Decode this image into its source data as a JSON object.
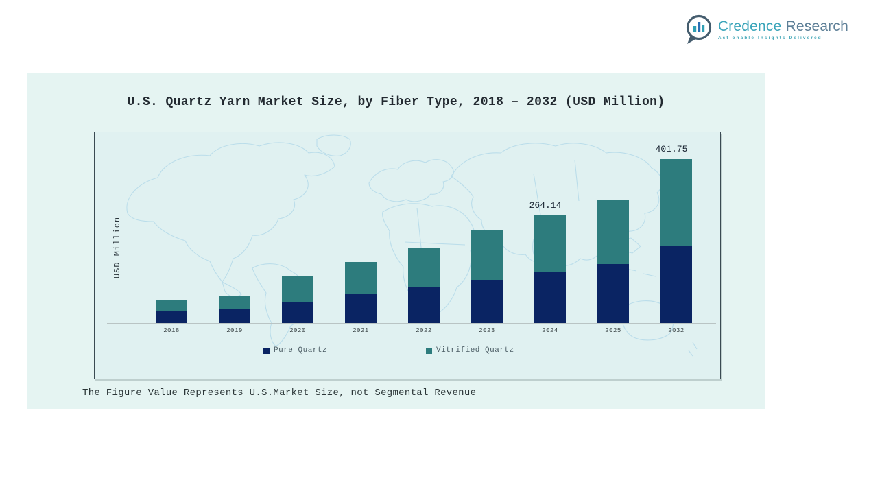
{
  "logo": {
    "brand_primary": "Credence",
    "brand_secondary": "Research",
    "tagline": "Actionable Insights Delivered",
    "colors": {
      "primary_text": "#3ba5ba",
      "secondary_text": "#5d7f97",
      "tagline_text": "#45a8b8",
      "icon_outline": "#455d6e",
      "icon_bar_teal": "#2f9fb4",
      "icon_bar_blue": "#2a6fb4"
    }
  },
  "footnote": "The Figure Value Represents U.S.Market Size, not Segmental Revenue",
  "chart_data": {
    "type": "bar",
    "stacked": true,
    "title": "U.S. Quartz Yarn Market Size, by Fiber Type, 2018 – 2032 (USD Million)",
    "xlabel": "",
    "ylabel": "USD Million",
    "ylim": [
      0,
      450
    ],
    "grid": false,
    "legend_position": "bottom",
    "background_decoration": "world-map-outline",
    "panel_color": "#e5f4f2",
    "categories": [
      "2018",
      "2019",
      "2020",
      "2021",
      "2022",
      "2023",
      "2024",
      "2025",
      "2032"
    ],
    "series": [
      {
        "name": "Pure Quartz",
        "color": "#0a2463",
        "values": [
          28.5,
          33.5,
          52.0,
          70.5,
          88.0,
          106.0,
          124.8,
          144.0,
          190.3
        ]
      },
      {
        "name": "Vitrified Quartz",
        "color": "#2d7c7d",
        "values": [
          28.5,
          33.5,
          63.0,
          79.0,
          96.5,
          121.0,
          139.34,
          158.0,
          211.45
        ]
      }
    ],
    "totals_estimated": [
      57.0,
      67.0,
      115.0,
      149.5,
      184.5,
      227.0,
      264.14,
      302.0,
      401.75
    ],
    "annotations": [
      {
        "category": "2024",
        "label": "264.14"
      },
      {
        "category": "2032",
        "label": "401.75"
      }
    ]
  }
}
